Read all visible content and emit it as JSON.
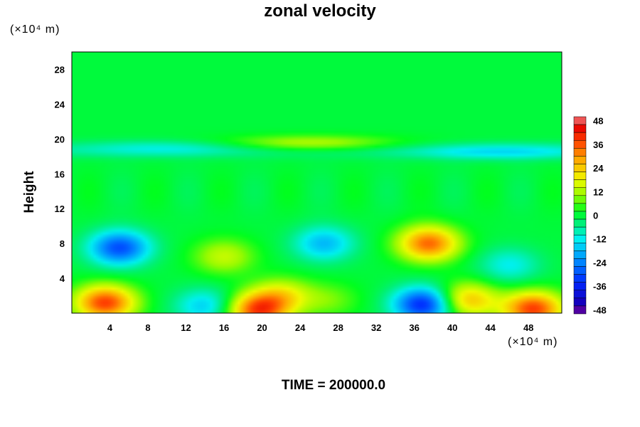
{
  "chart_data": {
    "type": "heatmap",
    "title": "zonal velocity",
    "ylabel": "Height",
    "xlabel": "",
    "x_unit": "(×10⁴ m)",
    "y_unit": "(×10⁴ m)",
    "xlim": [
      0,
      51.5
    ],
    "ylim": [
      0,
      30
    ],
    "x_ticks": [
      "4",
      "8",
      "12",
      "16",
      "20",
      "24",
      "28",
      "32",
      "36",
      "40",
      "44",
      "48"
    ],
    "x_tick_values": [
      4,
      8,
      12,
      16,
      20,
      24,
      28,
      32,
      36,
      40,
      44,
      48
    ],
    "y_ticks": [
      "4",
      "8",
      "12",
      "16",
      "20",
      "24",
      "28"
    ],
    "y_tick_values": [
      4,
      8,
      12,
      16,
      20,
      24,
      28
    ],
    "colorbar": {
      "min": -50,
      "max": 50,
      "ticks": [
        "48",
        "36",
        "24",
        "12",
        "0",
        "-12",
        "-24",
        "-36",
        "-48"
      ],
      "tick_values": [
        48,
        36,
        24,
        12,
        0,
        -12,
        -24,
        -36,
        -48
      ]
    },
    "field_features": [
      {
        "x": 5,
        "y": 7.5,
        "value": -30
      },
      {
        "x": 3.5,
        "y": 1.2,
        "value": 38
      },
      {
        "x": 14,
        "y": 0.8,
        "value": -16
      },
      {
        "x": 19.5,
        "y": 0.3,
        "value": 36
      },
      {
        "x": 22,
        "y": 2,
        "value": 18
      },
      {
        "x": 26.5,
        "y": 8,
        "value": -18
      },
      {
        "x": 27,
        "y": 1.5,
        "value": 8
      },
      {
        "x": 37.5,
        "y": 8,
        "value": 34
      },
      {
        "x": 37,
        "y": 1,
        "value": -36
      },
      {
        "x": 41.5,
        "y": 1.5,
        "value": 26
      },
      {
        "x": 48.5,
        "y": 0.5,
        "value": 38
      },
      {
        "x": 46,
        "y": 5.5,
        "value": -12
      },
      {
        "x": 16,
        "y": 6.5,
        "value": 14
      },
      {
        "x": 25,
        "y": 19.5,
        "value": 14
      },
      {
        "x": 45,
        "y": 18.5,
        "value": -10
      },
      {
        "x": 10,
        "y": 19,
        "value": -7
      }
    ],
    "footer": "TIME = 200000.0"
  }
}
